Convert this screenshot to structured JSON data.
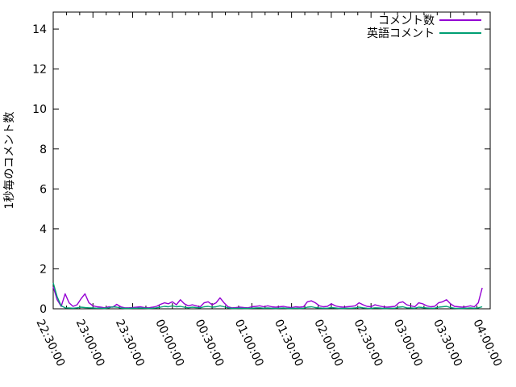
{
  "chart_data": {
    "type": "line",
    "title": "",
    "xlabel": "",
    "ylabel": "1秒毎のコメント数",
    "x_start_label": "22:30:00",
    "x_end_label": "04:00:00",
    "x_total_minutes": 330,
    "x_step_minutes": 3,
    "x_major_tick_minutes": 30,
    "x_minor_tick_minutes": 10,
    "x_tick_labels": [
      "22:30:00",
      "23:00:00",
      "23:30:00",
      "00:00:00",
      "00:30:00",
      "01:00:00",
      "01:30:00",
      "02:00:00",
      "02:30:00",
      "03:00:00",
      "03:30:00",
      "04:00:00"
    ],
    "y_ticks": [
      0,
      2,
      4,
      6,
      8,
      10,
      12,
      14
    ],
    "ylim": [
      0,
      14.85
    ],
    "grid": false,
    "legend_position": "top-right-inside",
    "axis_color": "#000000",
    "background_color": "#ffffff",
    "series": [
      {
        "name": "コメント数",
        "color": "#9400d3",
        "values": [
          1.1,
          0.45,
          0.12,
          0.75,
          0.3,
          0.12,
          0.2,
          0.5,
          0.75,
          0.3,
          0.15,
          0.1,
          0.08,
          0.05,
          0.1,
          0.08,
          0.22,
          0.1,
          0.05,
          0.05,
          0.06,
          0.08,
          0.1,
          0.06,
          0.05,
          0.08,
          0.12,
          0.22,
          0.3,
          0.25,
          0.35,
          0.2,
          0.45,
          0.25,
          0.15,
          0.2,
          0.15,
          0.1,
          0.3,
          0.35,
          0.2,
          0.3,
          0.55,
          0.3,
          0.1,
          0.05,
          0.06,
          0.08,
          0.06,
          0.05,
          0.1,
          0.12,
          0.15,
          0.1,
          0.15,
          0.1,
          0.08,
          0.1,
          0.12,
          0.08,
          0.06,
          0.1,
          0.08,
          0.1,
          0.35,
          0.4,
          0.3,
          0.15,
          0.1,
          0.12,
          0.25,
          0.15,
          0.1,
          0.08,
          0.1,
          0.12,
          0.15,
          0.3,
          0.2,
          0.12,
          0.1,
          0.2,
          0.15,
          0.1,
          0.08,
          0.1,
          0.12,
          0.3,
          0.35,
          0.2,
          0.15,
          0.1,
          0.3,
          0.25,
          0.15,
          0.1,
          0.12,
          0.3,
          0.35,
          0.45,
          0.25,
          0.12,
          0.1,
          0.08,
          0.1,
          0.15,
          0.1,
          0.3,
          1.05
        ]
      },
      {
        "name": "英語コメント",
        "color": "#009e73",
        "values": [
          1.3,
          0.6,
          0.15,
          0.05,
          0.04,
          0.03,
          0.05,
          0.08,
          0.06,
          0.05,
          0.04,
          0.03,
          0.03,
          0.02,
          0.05,
          0.1,
          0.08,
          0.04,
          0.02,
          0.02,
          0.03,
          0.03,
          0.04,
          0.03,
          0.02,
          0.03,
          0.05,
          0.08,
          0.12,
          0.1,
          0.15,
          0.1,
          0.12,
          0.08,
          0.05,
          0.08,
          0.06,
          0.05,
          0.1,
          0.12,
          0.08,
          0.1,
          0.15,
          0.1,
          0.05,
          0.02,
          0.02,
          0.03,
          0.02,
          0.02,
          0.03,
          0.04,
          0.05,
          0.03,
          0.04,
          0.03,
          0.02,
          0.03,
          0.04,
          0.02,
          0.02,
          0.03,
          0.02,
          0.03,
          0.08,
          0.1,
          0.06,
          0.04,
          0.03,
          0.03,
          0.06,
          0.04,
          0.02,
          0.02,
          0.03,
          0.03,
          0.04,
          0.08,
          0.05,
          0.03,
          0.02,
          0.05,
          0.04,
          0.02,
          0.02,
          0.03,
          0.03,
          0.08,
          0.1,
          0.05,
          0.04,
          0.03,
          0.08,
          0.06,
          0.04,
          0.03,
          0.03,
          0.08,
          0.1,
          0.12,
          0.06,
          0.03,
          0.02,
          0.02,
          0.03,
          0.04,
          0.03,
          0.05,
          0.1
        ]
      }
    ]
  }
}
